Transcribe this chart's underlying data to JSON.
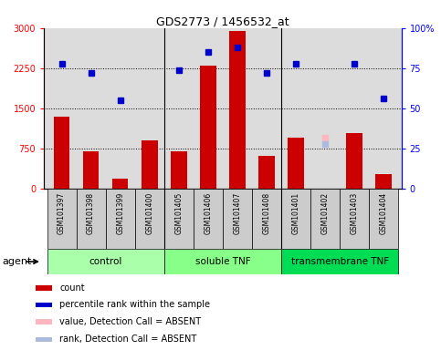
{
  "title": "GDS2773 / 1456532_at",
  "samples": [
    "GSM101397",
    "GSM101398",
    "GSM101399",
    "GSM101400",
    "GSM101405",
    "GSM101406",
    "GSM101407",
    "GSM101408",
    "GSM101401",
    "GSM101402",
    "GSM101403",
    "GSM101404"
  ],
  "counts": [
    1350,
    700,
    200,
    900,
    700,
    2300,
    2950,
    620,
    950,
    null,
    1050,
    280
  ],
  "percentile_ranks": [
    78,
    72,
    55,
    null,
    74,
    85,
    88,
    72,
    78,
    null,
    78,
    56
  ],
  "absent_value": [
    null,
    null,
    null,
    null,
    null,
    null,
    null,
    null,
    null,
    950,
    null,
    null
  ],
  "absent_rank": [
    null,
    null,
    null,
    null,
    null,
    null,
    null,
    null,
    null,
    28,
    null,
    null
  ],
  "groups": [
    {
      "label": "control",
      "start": 0,
      "end": 3,
      "color": "#AAFFAA"
    },
    {
      "label": "soluble TNF",
      "start": 4,
      "end": 7,
      "color": "#88FF88"
    },
    {
      "label": "transmembrane TNF",
      "start": 8,
      "end": 11,
      "color": "#00DD55"
    }
  ],
  "ylim_left": [
    0,
    3000
  ],
  "ylim_right": [
    0,
    100
  ],
  "yticks_left": [
    0,
    750,
    1500,
    2250,
    3000
  ],
  "yticks_right": [
    0,
    25,
    50,
    75,
    100
  ],
  "ytick_labels_left": [
    "0",
    "750",
    "1500",
    "2250",
    "3000"
  ],
  "ytick_labels_right": [
    "0",
    "25",
    "50",
    "75",
    "100%"
  ],
  "bar_color": "#CC0000",
  "dot_color": "#0000CC",
  "absent_val_color": "#FFB6C1",
  "absent_rank_color": "#AABBDD",
  "plot_bg_color": "#DCDCDC",
  "tick_area_color": "#CCCCCC",
  "agent_label": "agent",
  "separator_color": "#000000",
  "legend_items": [
    {
      "label": "count",
      "color": "#CC0000"
    },
    {
      "label": "percentile rank within the sample",
      "color": "#0000CC"
    },
    {
      "label": "value, Detection Call = ABSENT",
      "color": "#FFB6C1"
    },
    {
      "label": "rank, Detection Call = ABSENT",
      "color": "#AABBDD"
    }
  ]
}
